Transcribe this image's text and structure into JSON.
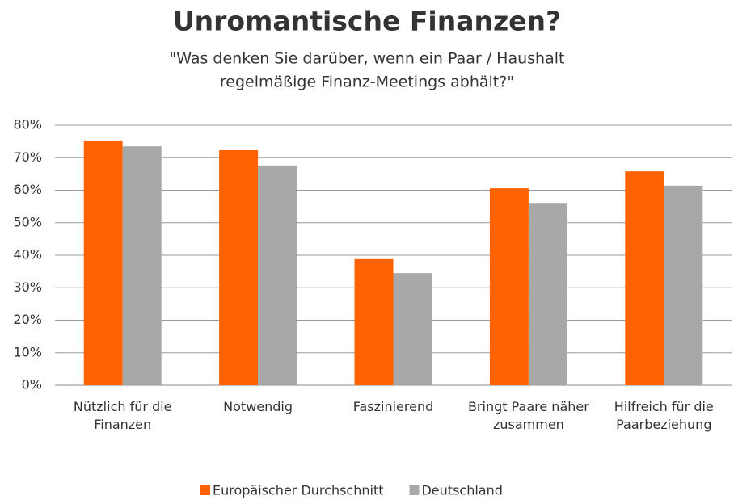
{
  "chart_data": {
    "type": "bar",
    "title": "Unromantische Finanzen?",
    "subtitle": [
      "\"Was denken Sie darüber, wenn ein Paar / Haushalt",
      "regelmäßige Finanz-Meetings abhält?\""
    ],
    "categories": [
      "Nützlich für die Finanzen",
      "Notwendig",
      "Faszinierend",
      "Bringt Paare näher zusammen",
      "Hilfreich für die Paarbeziehung"
    ],
    "series": [
      {
        "name": "Europäischer Durchschnitt",
        "color": "#ff6200",
        "values": [
          75.3,
          72.3,
          38.8,
          60.6,
          65.8
        ]
      },
      {
        "name": "Deutschland",
        "color": "#a8a8a8",
        "values": [
          73.5,
          67.6,
          34.5,
          56.1,
          61.4
        ]
      }
    ],
    "ylim": [
      0,
      80
    ],
    "yticks": [
      {
        "value": 0,
        "label": "0%"
      },
      {
        "value": 10,
        "label": "10%"
      },
      {
        "value": 20,
        "label": "20%"
      },
      {
        "value": 30,
        "label": "30%"
      },
      {
        "value": 40,
        "label": "40%"
      },
      {
        "value": 50,
        "label": "50%"
      },
      {
        "value": 60,
        "label": "60%"
      },
      {
        "value": 70,
        "label": "70%"
      },
      {
        "value": 80,
        "label": "80%"
      }
    ],
    "grid": true,
    "legend": "bottom"
  }
}
